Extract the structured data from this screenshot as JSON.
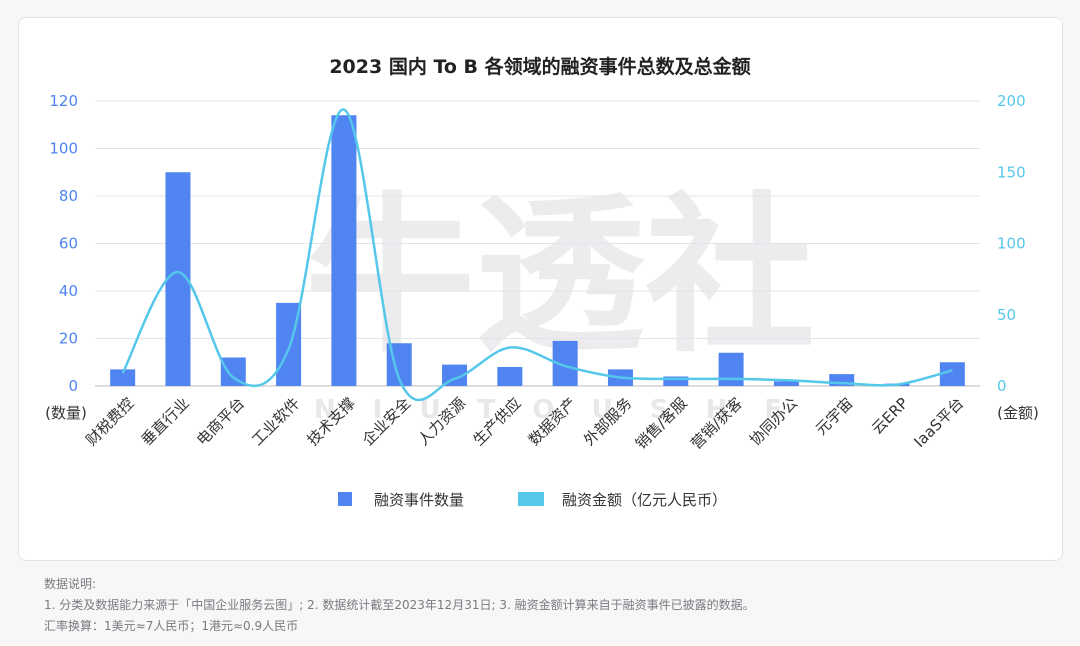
{
  "chart_data": {
    "type": "bar",
    "title": "2023 国内 To B 各领域的融资事件总数及总金额",
    "categories": [
      "财税费控",
      "垂直行业",
      "电商平台",
      "工业软件",
      "技术支撑",
      "企业安全",
      "人力资源",
      "生产供应",
      "数据资产",
      "外部服务",
      "销售/客服",
      "营销/获客",
      "协同办公",
      "元宇宙",
      "云ERP",
      "IaaS平台"
    ],
    "series": [
      {
        "name": "融资事件数量",
        "type": "bar",
        "axis": "left",
        "color": "#4f84f1",
        "values": [
          7,
          90,
          12,
          35,
          114,
          18,
          9,
          8,
          19,
          7,
          4,
          14,
          2,
          5,
          1,
          10
        ]
      },
      {
        "name": "融资金额（亿元人民币）",
        "type": "line",
        "axis": "right",
        "color": "#55c7ea",
        "values": [
          9,
          80,
          6,
          26,
          194,
          5,
          5,
          27,
          14,
          6,
          5,
          5,
          4,
          2,
          1,
          11
        ]
      }
    ],
    "y_left": {
      "label": "(数量)",
      "min": 0,
      "max": 120,
      "ticks": [
        0,
        20,
        40,
        60,
        80,
        100,
        120
      ],
      "color": "#4f84f1"
    },
    "y_right": {
      "label": "(金额)",
      "min": 0,
      "max": 200,
      "ticks": [
        0,
        50,
        100,
        150,
        200
      ],
      "color": "#55c7ea"
    },
    "grid": true,
    "legend_position": "bottom",
    "watermark": "牛透社",
    "watermark_sub": "N I U T O U S H E"
  },
  "notes": {
    "heading": "数据说明:",
    "line1": "1. 分类及数据能力来源于「中国企业服务云图」; 2. 数据统计截至2023年12月31日; 3. 融资金额计算来自于融资事件已披露的数据。",
    "line2": "汇率换算：1美元≈7人民币；1港元≈0.9人民币"
  }
}
